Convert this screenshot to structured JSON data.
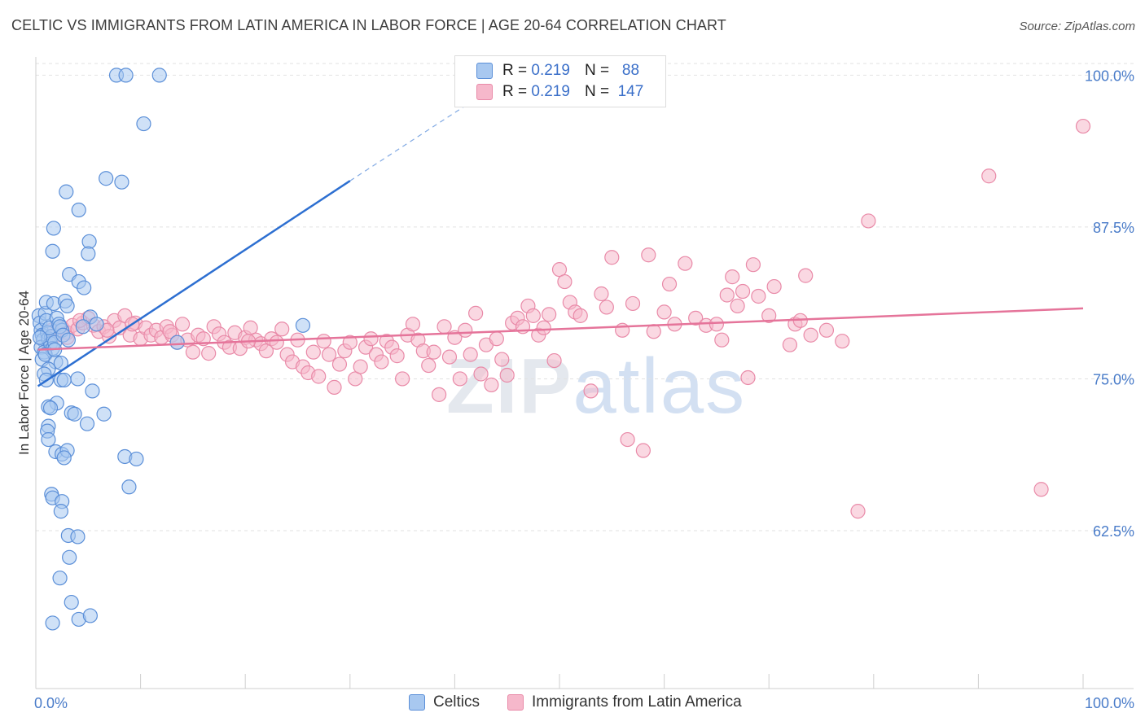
{
  "title": "CELTIC VS IMMIGRANTS FROM LATIN AMERICA IN LABOR FORCE | AGE 20-64 CORRELATION CHART",
  "source": "Source: ZipAtlas.com",
  "watermark": {
    "zip": "ZIP",
    "atlas": "atlas"
  },
  "legend": {
    "r_label": "R =",
    "n_label": "N =",
    "rows": [
      {
        "r": "0.219",
        "n": "88"
      },
      {
        "r": "0.219",
        "n": "147"
      }
    ]
  },
  "colors": {
    "blue_fill": "#a8c8f0",
    "blue_stroke": "#5b8fd8",
    "blue_line": "#2d6fd1",
    "pink_fill": "#f6b8cb",
    "pink_stroke": "#e98aa8",
    "pink_line": "#e5749a",
    "grid": "#e2e2e2",
    "tick_text": "#4a7cc9"
  },
  "chart_data": {
    "type": "scatter",
    "xlabel_left": "0.0%",
    "xlabel_right": "100.0%",
    "ylabel": "In Labor Force | Age 20-64",
    "xlim": [
      0,
      100
    ],
    "ylim": [
      49.5,
      101.5
    ],
    "y_ticks": [
      {
        "value": 100,
        "label": "100.0%"
      },
      {
        "value": 87.5,
        "label": "87.5%"
      },
      {
        "value": 75,
        "label": "75.0%"
      },
      {
        "value": 62.5,
        "label": "62.5%"
      }
    ],
    "x_ticks": [
      10,
      20,
      30,
      40,
      50,
      60,
      70,
      80,
      90,
      100
    ],
    "series": [
      {
        "name": "Celtics",
        "r": 0.219,
        "n": 88,
        "trend": {
          "x0": 0.2,
          "y0": 74.4,
          "x1": 30,
          "y1": 91.3,
          "dash_to_x": 43,
          "dash_to_y": 98.6
        },
        "points": [
          [
            0.3,
            80.2
          ],
          [
            0.4,
            79.6
          ],
          [
            0.5,
            79.0
          ],
          [
            0.6,
            78.6
          ],
          [
            0.7,
            78.2
          ],
          [
            0.5,
            77.6
          ],
          [
            0.8,
            77.2
          ],
          [
            0.6,
            76.6
          ],
          [
            0.9,
            80.4
          ],
          [
            1.0,
            79.8
          ],
          [
            1.1,
            78.8
          ],
          [
            1.2,
            78.3
          ],
          [
            1.4,
            77.9
          ],
          [
            1.5,
            78.5
          ],
          [
            1.3,
            79.2
          ],
          [
            1.6,
            77.5
          ],
          [
            1.8,
            78.0
          ],
          [
            2.0,
            80.0
          ],
          [
            2.2,
            79.5
          ],
          [
            2.5,
            79.0
          ],
          [
            1.0,
            81.3
          ],
          [
            1.7,
            81.2
          ],
          [
            2.8,
            81.4
          ],
          [
            3.0,
            81.0
          ],
          [
            2.3,
            79.3
          ],
          [
            2.6,
            78.6
          ],
          [
            0.4,
            78.4
          ],
          [
            0.9,
            77.0
          ],
          [
            1.9,
            76.4
          ],
          [
            2.4,
            76.3
          ],
          [
            1.2,
            75.8
          ],
          [
            0.8,
            75.4
          ],
          [
            1.0,
            74.9
          ],
          [
            2.4,
            74.9
          ],
          [
            2.7,
            74.9
          ],
          [
            4.0,
            75.0
          ],
          [
            5.4,
            74.0
          ],
          [
            2.0,
            73.0
          ],
          [
            1.2,
            72.7
          ],
          [
            1.4,
            72.6
          ],
          [
            3.4,
            72.2
          ],
          [
            3.7,
            72.1
          ],
          [
            6.5,
            72.1
          ],
          [
            4.9,
            71.3
          ],
          [
            1.2,
            71.1
          ],
          [
            1.1,
            70.7
          ],
          [
            1.2,
            70.0
          ],
          [
            1.9,
            69.0
          ],
          [
            2.5,
            68.8
          ],
          [
            3.0,
            69.1
          ],
          [
            2.7,
            68.5
          ],
          [
            8.5,
            68.6
          ],
          [
            9.6,
            68.4
          ],
          [
            8.9,
            66.1
          ],
          [
            1.5,
            65.5
          ],
          [
            1.6,
            65.2
          ],
          [
            2.5,
            64.9
          ],
          [
            2.4,
            64.1
          ],
          [
            3.1,
            62.1
          ],
          [
            4.0,
            62.0
          ],
          [
            3.2,
            60.3
          ],
          [
            2.3,
            58.6
          ],
          [
            3.4,
            56.6
          ],
          [
            4.1,
            55.2
          ],
          [
            5.2,
            55.5
          ],
          [
            1.6,
            54.9
          ],
          [
            1.7,
            87.4
          ],
          [
            1.6,
            85.5
          ],
          [
            2.9,
            90.4
          ],
          [
            4.1,
            88.9
          ],
          [
            5.1,
            86.3
          ],
          [
            5.0,
            85.3
          ],
          [
            3.2,
            83.6
          ],
          [
            4.1,
            83.0
          ],
          [
            4.6,
            82.5
          ],
          [
            6.7,
            91.5
          ],
          [
            8.2,
            91.2
          ],
          [
            10.3,
            96.0
          ],
          [
            7.7,
            100.0
          ],
          [
            8.6,
            100.0
          ],
          [
            11.8,
            100.0
          ],
          [
            5.2,
            80.1
          ],
          [
            5.8,
            79.5
          ],
          [
            4.5,
            79.3
          ],
          [
            13.5,
            78.0
          ],
          [
            25.5,
            79.4
          ],
          [
            3.1,
            78.2
          ],
          [
            1.8,
            77.4
          ]
        ]
      },
      {
        "name": "Immigrants from Latin America",
        "r": 0.219,
        "n": 147,
        "trend": {
          "x0": 0.2,
          "y0": 77.4,
          "x1": 100,
          "y1": 80.8
        },
        "points": [
          [
            1.5,
            79.0
          ],
          [
            2.0,
            78.6
          ],
          [
            2.5,
            79.2
          ],
          [
            3.0,
            78.8
          ],
          [
            3.5,
            79.4
          ],
          [
            4.0,
            79.1
          ],
          [
            4.5,
            79.6
          ],
          [
            5.0,
            80.0
          ],
          [
            5.5,
            79.4
          ],
          [
            6.0,
            78.9
          ],
          [
            6.5,
            79.3
          ],
          [
            7.0,
            78.5
          ],
          [
            7.5,
            79.8
          ],
          [
            8.0,
            79.2
          ],
          [
            8.5,
            80.2
          ],
          [
            9.0,
            78.6
          ],
          [
            9.5,
            79.6
          ],
          [
            10.0,
            78.3
          ],
          [
            10.5,
            79.2
          ],
          [
            11.0,
            78.6
          ],
          [
            11.5,
            79.0
          ],
          [
            12.0,
            78.4
          ],
          [
            12.5,
            79.3
          ],
          [
            13.0,
            78.6
          ],
          [
            13.5,
            78.0
          ],
          [
            14.0,
            79.5
          ],
          [
            14.5,
            78.2
          ],
          [
            15.0,
            77.2
          ],
          [
            15.5,
            78.6
          ],
          [
            16.0,
            78.3
          ],
          [
            16.5,
            77.1
          ],
          [
            17.0,
            79.3
          ],
          [
            17.5,
            78.7
          ],
          [
            18.0,
            78.0
          ],
          [
            18.5,
            77.6
          ],
          [
            19.0,
            78.8
          ],
          [
            19.5,
            77.5
          ],
          [
            20.0,
            78.4
          ],
          [
            20.5,
            79.2
          ],
          [
            21.0,
            78.2
          ],
          [
            21.5,
            77.9
          ],
          [
            22.0,
            77.3
          ],
          [
            22.5,
            78.3
          ],
          [
            23.0,
            78.0
          ],
          [
            23.5,
            79.1
          ],
          [
            24.0,
            77.0
          ],
          [
            24.5,
            76.4
          ],
          [
            25.0,
            78.2
          ],
          [
            25.5,
            76.0
          ],
          [
            26.0,
            75.5
          ],
          [
            26.5,
            77.2
          ],
          [
            27.0,
            75.2
          ],
          [
            27.5,
            78.1
          ],
          [
            28.0,
            77.0
          ],
          [
            28.5,
            74.3
          ],
          [
            29.0,
            76.2
          ],
          [
            29.5,
            77.3
          ],
          [
            30.0,
            78.0
          ],
          [
            30.5,
            75.0
          ],
          [
            31.0,
            76.0
          ],
          [
            31.5,
            77.6
          ],
          [
            32.0,
            78.3
          ],
          [
            32.5,
            77.0
          ],
          [
            33.0,
            76.4
          ],
          [
            33.5,
            78.1
          ],
          [
            34.0,
            77.6
          ],
          [
            34.5,
            76.9
          ],
          [
            35.0,
            75.0
          ],
          [
            35.5,
            78.6
          ],
          [
            36.0,
            79.5
          ],
          [
            36.5,
            78.2
          ],
          [
            37.0,
            77.3
          ],
          [
            37.5,
            76.1
          ],
          [
            38.0,
            77.2
          ],
          [
            38.5,
            73.7
          ],
          [
            39.0,
            79.3
          ],
          [
            39.5,
            76.8
          ],
          [
            40.0,
            78.4
          ],
          [
            40.5,
            75.0
          ],
          [
            41.0,
            79.0
          ],
          [
            41.5,
            77.0
          ],
          [
            42.0,
            80.4
          ],
          [
            42.5,
            75.4
          ],
          [
            43.0,
            77.8
          ],
          [
            43.5,
            74.5
          ],
          [
            44.0,
            78.3
          ],
          [
            44.5,
            76.6
          ],
          [
            45.0,
            75.3
          ],
          [
            45.5,
            79.6
          ],
          [
            46.0,
            80.0
          ],
          [
            46.5,
            79.3
          ],
          [
            47.0,
            81.0
          ],
          [
            47.5,
            80.2
          ],
          [
            48.0,
            78.6
          ],
          [
            48.5,
            79.2
          ],
          [
            49.0,
            80.3
          ],
          [
            49.5,
            76.5
          ],
          [
            50.0,
            84.0
          ],
          [
            50.5,
            83.0
          ],
          [
            51.0,
            81.3
          ],
          [
            51.5,
            80.5
          ],
          [
            52.0,
            80.2
          ],
          [
            53.0,
            74.0
          ],
          [
            54.0,
            82.0
          ],
          [
            54.5,
            80.9
          ],
          [
            55.0,
            85.0
          ],
          [
            56.0,
            79.0
          ],
          [
            56.5,
            70.0
          ],
          [
            57.0,
            81.2
          ],
          [
            58.0,
            69.1
          ],
          [
            58.5,
            85.2
          ],
          [
            59.0,
            78.9
          ],
          [
            60.0,
            80.5
          ],
          [
            60.5,
            82.8
          ],
          [
            61.0,
            79.5
          ],
          [
            62.0,
            84.5
          ],
          [
            63.0,
            80.0
          ],
          [
            64.0,
            79.4
          ],
          [
            65.0,
            79.5
          ],
          [
            65.5,
            78.2
          ],
          [
            66.0,
            81.9
          ],
          [
            66.5,
            83.4
          ],
          [
            67.0,
            81.0
          ],
          [
            67.5,
            82.2
          ],
          [
            68.0,
            75.1
          ],
          [
            68.5,
            84.4
          ],
          [
            69.0,
            81.8
          ],
          [
            70.0,
            80.2
          ],
          [
            70.5,
            82.6
          ],
          [
            72.0,
            77.8
          ],
          [
            72.5,
            79.5
          ],
          [
            73.0,
            79.8
          ],
          [
            73.5,
            83.5
          ],
          [
            74.0,
            78.6
          ],
          [
            75.5,
            79.0
          ],
          [
            77.0,
            78.1
          ],
          [
            78.5,
            64.1
          ],
          [
            79.5,
            88.0
          ],
          [
            91.0,
            91.7
          ],
          [
            96.0,
            65.9
          ],
          [
            100.0,
            95.8
          ],
          [
            3.0,
            78.4
          ],
          [
            4.2,
            79.8
          ],
          [
            6.8,
            79.0
          ],
          [
            9.2,
            79.5
          ],
          [
            12.8,
            78.9
          ],
          [
            20.3,
            78.1
          ]
        ]
      }
    ]
  }
}
